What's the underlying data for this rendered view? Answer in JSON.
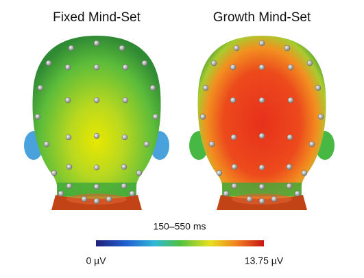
{
  "panels": [
    {
      "title": "Fixed Mind-Set"
    },
    {
      "title": "Growth Mind-Set"
    }
  ],
  "colorbar": {
    "title": "150–550 ms",
    "min_label": "0 µV",
    "max_label": "13.75 µV"
  }
}
